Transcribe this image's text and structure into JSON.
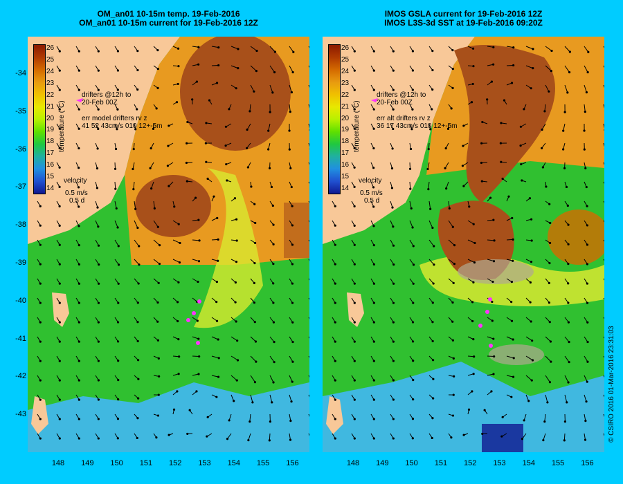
{
  "left": {
    "title_line1": "OM_an01 10-15m temp. 19-Feb-2016",
    "title_line2": "OM_an01 10-15m current for 19-Feb-2016 12Z",
    "drifters_line1": "drifters @12h to",
    "drifters_line2": "20-Feb 00Z",
    "err_line1": "err model drifters rv z",
    "err_line2": "41 52 43cm/s 010 12+-5m",
    "velocity_label": "velocity",
    "velocity_scale1": "0.5 m/s",
    "velocity_scale2": "0.5 d"
  },
  "right": {
    "title_line1": "IMOS GSLA current for 19-Feb-2016 12Z",
    "title_line2": "IMOS L3S-3d SST at 19-Feb-2016 09:20Z",
    "drifters_line1": "drifters @12h to",
    "drifters_line2": "20-Feb 00Z",
    "err_line1": "err alt drifters rv z",
    "err_line2": "36 17 43cm/s 010 12+-5m",
    "velocity_label": "velocity",
    "velocity_scale1": "0.5 m/s",
    "velocity_scale2": "0.5 d"
  },
  "colorbar": {
    "title": "temperature (°C)",
    "ticks": [
      "26",
      "25",
      "24",
      "23",
      "22",
      "21",
      "20",
      "19",
      "18",
      "17",
      "16",
      "15",
      "14"
    ],
    "colors": [
      "#8b1a00",
      "#b03a00",
      "#d46a00",
      "#e89a10",
      "#f0c000",
      "#e8e800",
      "#b8f000",
      "#60e000",
      "#20c840",
      "#20b0a0",
      "#2090e0",
      "#2050d0",
      "#101890"
    ]
  },
  "axes": {
    "lat_ticks": [
      "-34",
      "-35",
      "-36",
      "-37",
      "-38",
      "-39",
      "-40",
      "-41",
      "-42",
      "-43"
    ],
    "lon_ticks": [
      "148",
      "149",
      "150",
      "151",
      "152",
      "153",
      "154",
      "155",
      "156"
    ]
  },
  "copyright": "© CSIRO 2016   01-Mar-2016 23:31:03",
  "colors": {
    "background": "#00ccff",
    "land": "#f8c898",
    "warm_core": "#a8501a",
    "warm": "#e89a20",
    "mid": "#d8e830",
    "cool": "#30c030",
    "cold": "#40b8e0",
    "drifter": "#ff33ff"
  }
}
